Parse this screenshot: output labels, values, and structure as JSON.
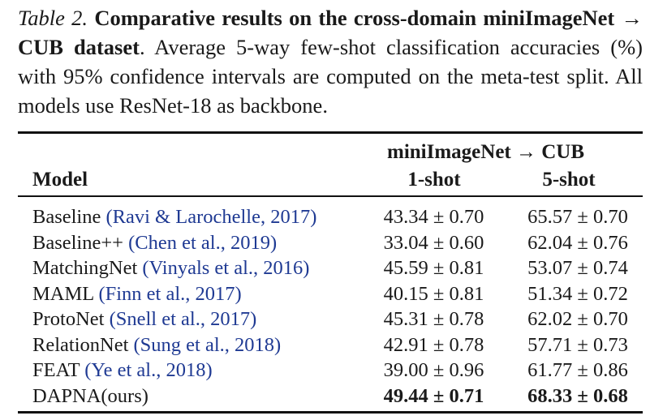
{
  "caption": {
    "label": "Table 2.",
    "bold_text": "Comparative results on the cross-domain miniImageNet → CUB dataset",
    "rest_text": ". Average 5-way few-shot classification accuracies (%) with 95% confidence intervals are computed on the meta-test split. All models use ResNet-18 as backbone."
  },
  "table": {
    "group_header": "miniImageNet → CUB",
    "col_model": "Model",
    "col_1shot": "1-shot",
    "col_5shot": "5-shot",
    "rows": [
      {
        "name": "Baseline",
        "cite": "(Ravi & Larochelle, 2017)",
        "shot1": "43.34 ± 0.70",
        "shot5": "65.57 ± 0.70"
      },
      {
        "name": "Baseline++",
        "cite": "(Chen et al., 2019)",
        "shot1": "33.04 ± 0.60",
        "shot5": "62.04 ± 0.76"
      },
      {
        "name": "MatchingNet",
        "cite": "(Vinyals et al., 2016)",
        "shot1": "45.59 ± 0.81",
        "shot5": "53.07 ± 0.74"
      },
      {
        "name": "MAML",
        "cite": "(Finn et al., 2017)",
        "shot1": "40.15 ± 0.81",
        "shot5": "51.34 ± 0.72"
      },
      {
        "name": "ProtoNet",
        "cite": "(Snell et al., 2017)",
        "shot1": "45.31 ± 0.78",
        "shot5": "62.02 ± 0.70"
      },
      {
        "name": "RelationNet",
        "cite": "(Sung et al., 2018)",
        "shot1": "42.91 ± 0.78",
        "shot5": "57.71 ± 0.73"
      },
      {
        "name": "FEAT",
        "cite": "(Ye et al., 2018)",
        "shot1": "39.00 ± 0.96",
        "shot5": "61.77 ± 0.86"
      },
      {
        "name": "DAPNA(ours)",
        "cite": "",
        "shot1": "49.44 ± 0.71",
        "shot5": "68.33 ± 0.68",
        "best": true
      }
    ]
  }
}
